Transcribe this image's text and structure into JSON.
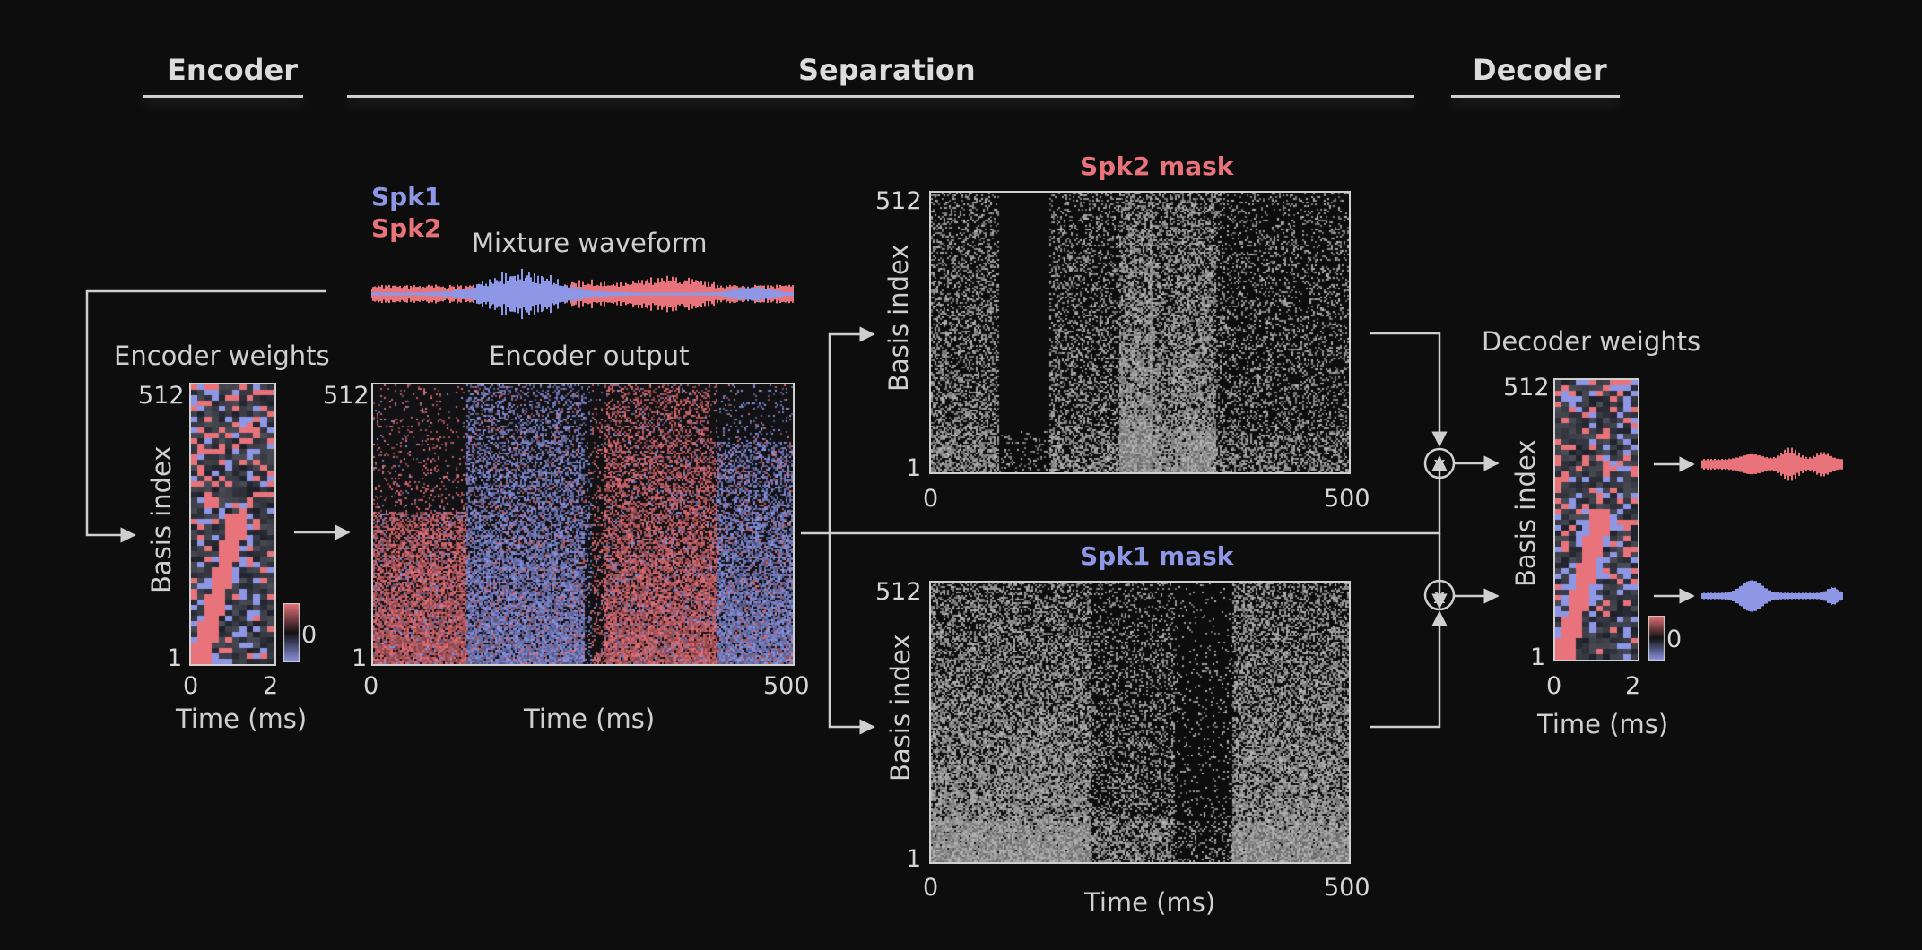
{
  "sections": {
    "encoder": "Encoder",
    "separation": "Separation",
    "decoder": "Decoder"
  },
  "legend": {
    "spk1": "Spk1",
    "spk2": "Spk2"
  },
  "colors": {
    "spk1": "#8d97e6",
    "spk2": "#e8737a",
    "mask": "#b9b9b9",
    "line": "#cfcfcf",
    "background": "#0d0d0d"
  },
  "waveform": {
    "title": "Mixture waveform"
  },
  "encoder_weights": {
    "title": "Encoder weights",
    "y_top": "512",
    "y_bottom": "1",
    "ylabel": "Basis index",
    "x_start": "0",
    "x_end": "2",
    "xlabel": "Time (ms)",
    "colorbar_label": "0"
  },
  "encoder_output": {
    "title": "Encoder output",
    "y_top": "512",
    "y_bottom": "1",
    "x_start": "0",
    "x_end": "500",
    "xlabel": "Time (ms)"
  },
  "spk2_mask": {
    "title": "Spk2 mask",
    "y_top": "512",
    "y_bottom": "1",
    "ylabel": "Basis index",
    "x_start": "0",
    "x_end": "500"
  },
  "spk1_mask": {
    "title": "Spk1 mask",
    "y_top": "512",
    "y_bottom": "1",
    "ylabel": "Basis index",
    "x_start": "0",
    "x_end": "500",
    "xlabel": "Time (ms)"
  },
  "multiply_symbol": "x",
  "decoder_weights": {
    "title": "Decoder weights",
    "y_top": "512",
    "y_bottom": "1",
    "ylabel": "Basis index",
    "x_start": "0",
    "x_end": "2",
    "xlabel": "Time (ms)",
    "colorbar_label": "0"
  }
}
